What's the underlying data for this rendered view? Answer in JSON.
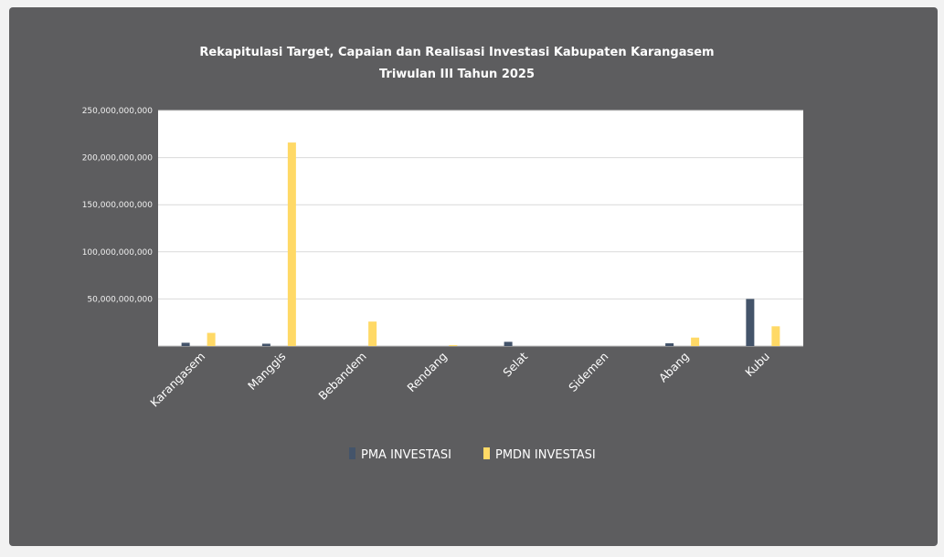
{
  "colors": {
    "background": "#5d5d5f",
    "plot_area": "#ffffff",
    "gridline": "#d9d9d9",
    "pma": "#44546a",
    "pmdn": "#ffd966"
  },
  "chart_data": {
    "type": "bar",
    "title": [
      "Rekapitulasi Target, Capaian dan Realisasi Investasi Kabupaten Karangasem",
      "Triwulan III Tahun 2025"
    ],
    "categories": [
      "Karangasem",
      "Manggis",
      "Bebandem",
      "Rendang",
      "Selat",
      "Sidemen",
      "Abang",
      "Kubu"
    ],
    "series": [
      {
        "name": "PMA INVESTASI",
        "color": "#44546a",
        "values": [
          3500000000,
          2500000000,
          0,
          0,
          4500000000,
          0,
          3000000000,
          50000000000
        ]
      },
      {
        "name": "PMDN INVESTASI",
        "color": "#ffd966",
        "values": [
          14000000000,
          216000000000,
          26000000000,
          1000000000,
          0,
          0,
          9000000000,
          21000000000
        ]
      }
    ],
    "ylim": [
      0,
      250000000000
    ],
    "yticks": [
      {
        "value": 0,
        "label": ""
      },
      {
        "value": 50000000000,
        "label": "50,000,000,000"
      },
      {
        "value": 100000000000,
        "label": "100,000,000,000"
      },
      {
        "value": 150000000000,
        "label": "150,000,000,000"
      },
      {
        "value": 200000000000,
        "label": "200,000,000,000"
      },
      {
        "value": 250000000000,
        "label": "250,000,000,000"
      }
    ],
    "xlabel": "",
    "ylabel": "",
    "grid": true,
    "legend_position": "bottom"
  }
}
